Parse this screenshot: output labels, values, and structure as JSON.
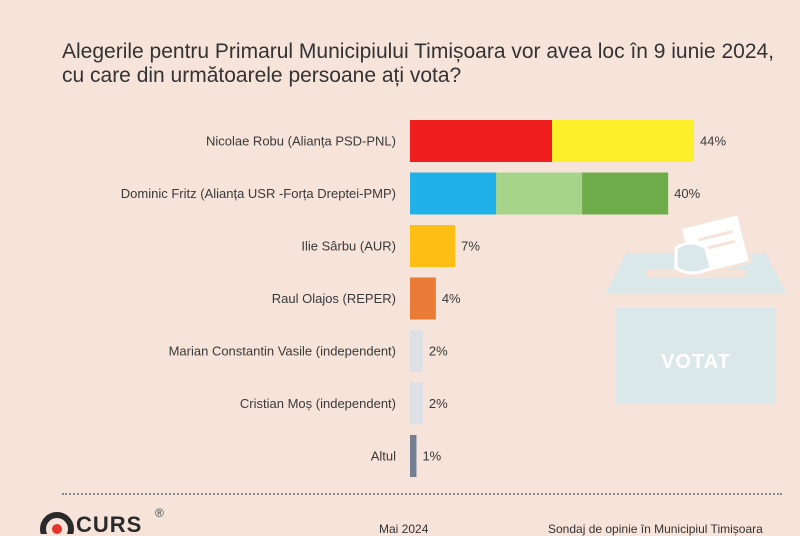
{
  "title": "Alegerile pentru Primarul Municipiului Timișoara vor avea loc în 9 iunie 2024, cu care din următoarele persoane ați vota?",
  "chart_data": {
    "type": "bar",
    "orientation": "horizontal",
    "title": "Alegerile pentru Primarul Municipiului Timișoara vor avea loc în 9 iunie 2024, cu care din următoarele persoane ați vota?",
    "xlim": [
      0,
      44
    ],
    "categories": [
      "Nicolae Robu (Alianța PSD-PNL)",
      "Dominic Fritz (Alianța USR -Forța Dreptei-PMP)",
      "Ilie Sârbu (AUR)",
      "Raul Olajos (REPER)",
      "Marian Constantin Vasile (independent)",
      "Cristian Moș (independent)",
      "Altul"
    ],
    "values": [
      44,
      40,
      7,
      4,
      2,
      2,
      1
    ],
    "value_labels": [
      "44%",
      "40%",
      "7%",
      "4%",
      "2%",
      "2%",
      "1%"
    ],
    "bar_colors": [
      [
        "#f01e1e",
        "#fdf02a"
      ],
      [
        "#20b1e8",
        "#a6d48a",
        "#6fad4a"
      ],
      [
        "#fdbf14"
      ],
      [
        "#ea7b36"
      ],
      [
        "#dde1e6"
      ],
      [
        "#dde1e6"
      ],
      [
        "#737f92"
      ]
    ]
  },
  "ballot_box": {
    "label": "VOTAT",
    "icon": "ballot-box-icon"
  },
  "footer": {
    "brand": "CURS",
    "registered": "®",
    "date": "Mai 2024",
    "source": "Sondaj de opinie în Municipiul Timișoara"
  }
}
